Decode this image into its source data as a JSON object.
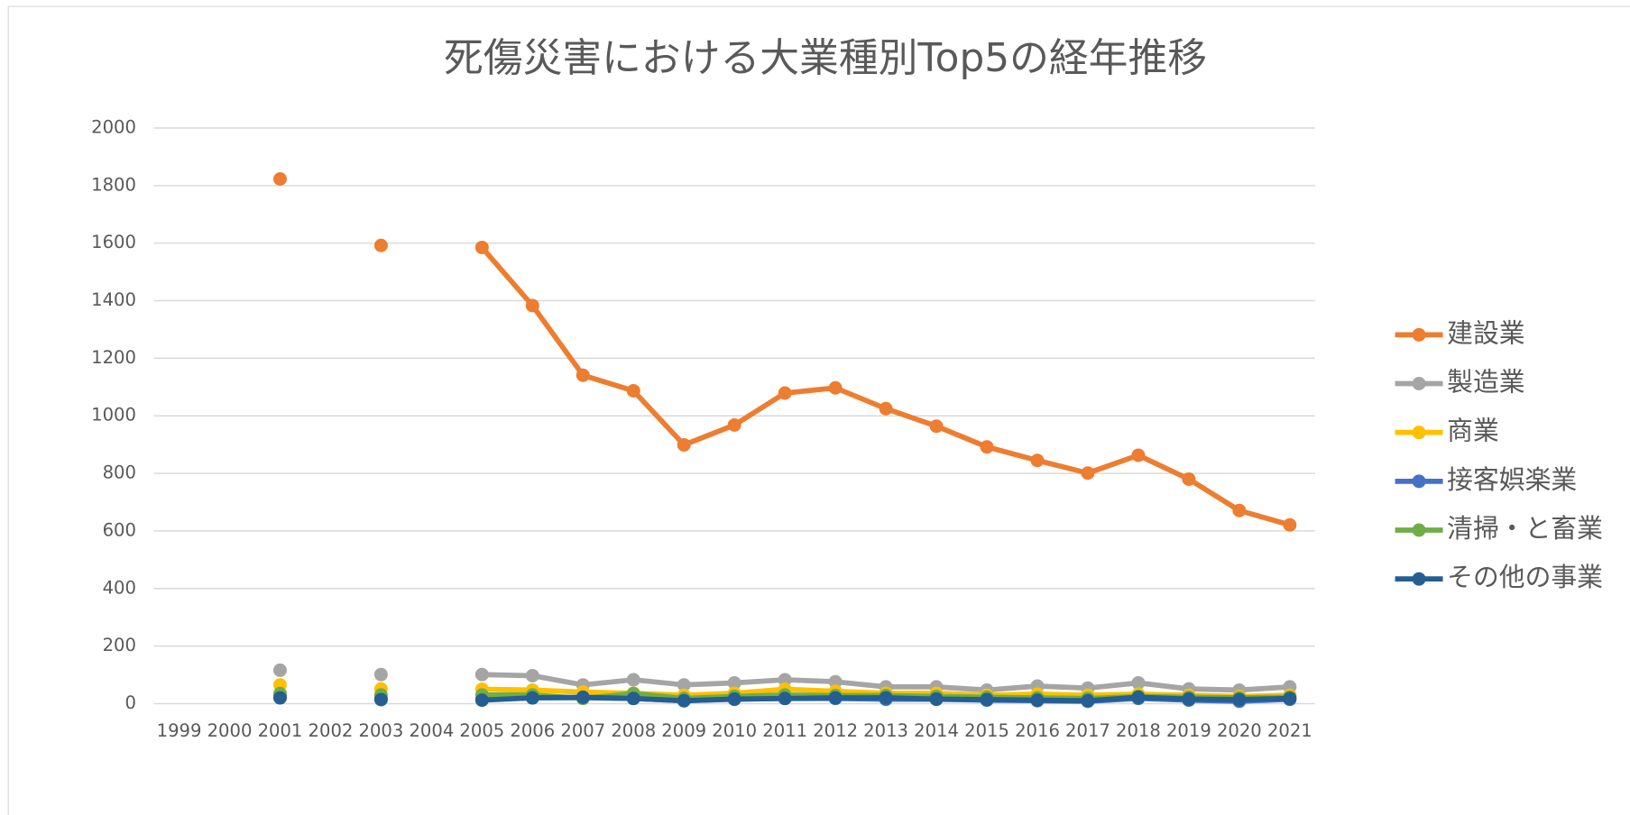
{
  "chart_data": {
    "type": "line",
    "title": "死傷災害における大業種別Top5の経年推移",
    "categories": [
      "1999",
      "2000",
      "2001",
      "2002",
      "2003",
      "2004",
      "2005",
      "2006",
      "2007",
      "2008",
      "2009",
      "2010",
      "2011",
      "2012",
      "2013",
      "2014",
      "2015",
      "2016",
      "2017",
      "2018",
      "2019",
      "2020",
      "2021"
    ],
    "series": [
      {
        "name": "建設業",
        "color": "#ed7d31",
        "values": [
          null,
          null,
          1823,
          null,
          1592,
          null,
          1585,
          1383,
          1141,
          1087,
          899,
          968,
          1079,
          1097,
          1025,
          964,
          892,
          845,
          801,
          863,
          780,
          671,
          621
        ]
      },
      {
        "name": "製造業",
        "color": "#a5a5a5",
        "values": [
          null,
          null,
          116,
          null,
          101,
          null,
          101,
          97,
          65,
          83,
          65,
          72,
          83,
          76,
          58,
          58,
          47,
          61,
          54,
          72,
          51,
          47,
          58
        ]
      },
      {
        "name": "商業",
        "color": "#ffc000",
        "values": [
          null,
          null,
          65,
          null,
          51,
          null,
          50,
          47,
          40,
          36,
          29,
          36,
          50,
          43,
          36,
          36,
          29,
          33,
          29,
          33,
          29,
          25,
          29
        ]
      },
      {
        "name": "接客娯楽業",
        "color": "#4472c4",
        "values": [
          null,
          null,
          25,
          null,
          18,
          null,
          15,
          20,
          20,
          18,
          10,
          15,
          18,
          18,
          15,
          15,
          12,
          10,
          8,
          18,
          12,
          8,
          15
        ]
      },
      {
        "name": "清掃・と畜業",
        "color": "#70ad47",
        "values": [
          null,
          null,
          35,
          null,
          30,
          null,
          30,
          30,
          18,
          35,
          18,
          25,
          30,
          28,
          28,
          25,
          22,
          20,
          18,
          25,
          22,
          20,
          22
        ]
      },
      {
        "name": "その他の事業",
        "color": "#255e91",
        "values": [
          null,
          null,
          20,
          null,
          14,
          null,
          12,
          20,
          22,
          18,
          10,
          16,
          18,
          20,
          20,
          16,
          14,
          12,
          10,
          22,
          16,
          14,
          18
        ]
      }
    ],
    "ylim": [
      0,
      2000
    ],
    "yticks": [
      0,
      200,
      400,
      600,
      800,
      1000,
      1200,
      1400,
      1600,
      1800,
      2000
    ],
    "grid": true,
    "legend": "right"
  }
}
